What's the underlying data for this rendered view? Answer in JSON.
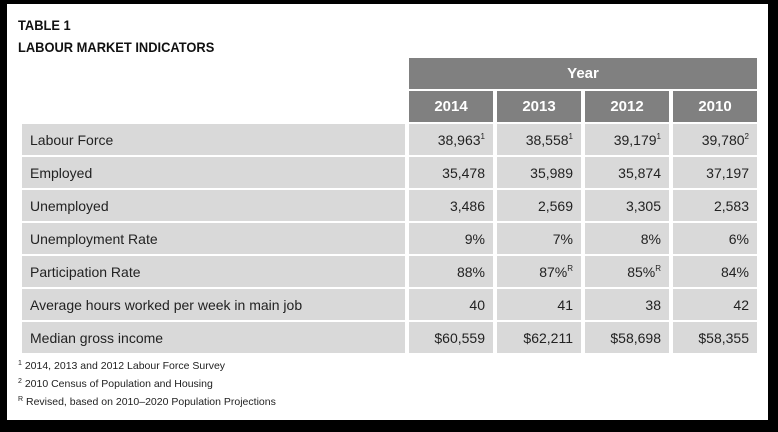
{
  "title": "TABLE 1",
  "subtitle": "LABOUR MARKET INDICATORS",
  "header": {
    "group": "Year",
    "years": [
      "2014",
      "2013",
      "2012",
      "2010"
    ]
  },
  "rows": [
    {
      "label": "Labour Force",
      "values": [
        {
          "v": "38,963",
          "s": "1"
        },
        {
          "v": "38,558",
          "s": "1"
        },
        {
          "v": "39,179",
          "s": "1"
        },
        {
          "v": "39,780",
          "s": "2"
        }
      ]
    },
    {
      "label": "Employed",
      "values": [
        {
          "v": "35,478"
        },
        {
          "v": "35,989"
        },
        {
          "v": "35,874"
        },
        {
          "v": "37,197"
        }
      ]
    },
    {
      "label": "Unemployed",
      "values": [
        {
          "v": "3,486"
        },
        {
          "v": "2,569"
        },
        {
          "v": "3,305"
        },
        {
          "v": "2,583"
        }
      ]
    },
    {
      "label": "Unemployment Rate",
      "values": [
        {
          "v": "9%"
        },
        {
          "v": "7%"
        },
        {
          "v": "8%"
        },
        {
          "v": "6%"
        }
      ]
    },
    {
      "label": "Participation Rate",
      "values": [
        {
          "v": "88%"
        },
        {
          "v": "87%",
          "s": "R"
        },
        {
          "v": "85%",
          "s": "R"
        },
        {
          "v": "84%"
        }
      ]
    },
    {
      "label": "Average hours worked per week in main job",
      "values": [
        {
          "v": "40"
        },
        {
          "v": "41"
        },
        {
          "v": "38"
        },
        {
          "v": "42"
        }
      ]
    },
    {
      "label": "Median gross income",
      "values": [
        {
          "v": "$60,559"
        },
        {
          "v": "$62,211"
        },
        {
          "v": "$58,698"
        },
        {
          "v": "$58,355"
        }
      ]
    }
  ],
  "footnotes": [
    {
      "mark": "1",
      "text": "2014, 2013 and 2012 Labour Force Survey"
    },
    {
      "mark": "2",
      "text": "2010 Census of Population and Housing"
    },
    {
      "mark": "R",
      "text": "Revised, based on 2010–2020 Population Projections"
    }
  ]
}
